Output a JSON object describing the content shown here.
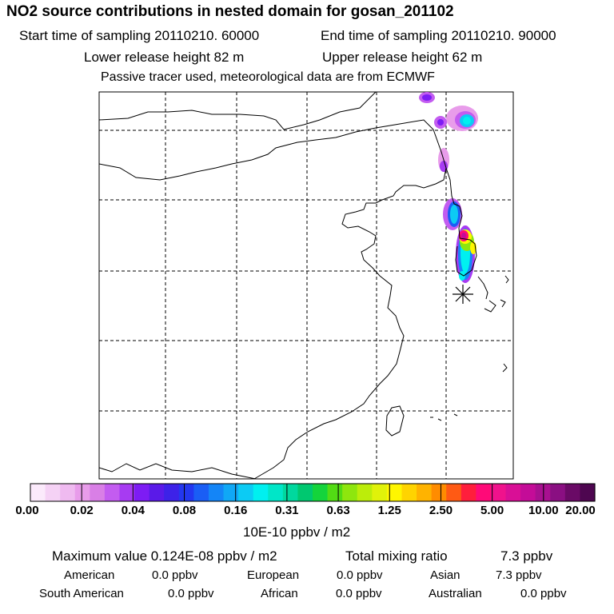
{
  "header": {
    "title": "NO2 source contributions in nested domain for gosan_201102",
    "start_label": "Start time of sampling 20110210. 60000",
    "end_label": "End time of sampling 20110210. 90000",
    "lower_label": "Lower release height   82 m",
    "upper_label": "Upper release height   62 m",
    "note": "Passive tracer used, meteorological data are from ECMWF"
  },
  "colors": {
    "scale": [
      "#fbeafb",
      "#f5d2f5",
      "#efbaf0",
      "#e89cea",
      "#d97fe6",
      "#c35cf0",
      "#a73bf2",
      "#7d1cf4",
      "#5a1ae8",
      "#3d22e8",
      "#2337f0",
      "#1a5ef5",
      "#1485f7",
      "#10a8f6",
      "#0ccbf4",
      "#00f0f0",
      "#00e6c8",
      "#00d89e",
      "#00c870",
      "#14d43c",
      "#52dc14",
      "#8ee60e",
      "#bced0a",
      "#e0f20a",
      "#fff600",
      "#ffd400",
      "#ffb300",
      "#ff8c00",
      "#ff5a14",
      "#ff1e3c",
      "#ff0a78",
      "#f0128c",
      "#d90f96",
      "#c40c98",
      "#a81090",
      "#8a0f82",
      "#6a0a66",
      "#4e0650"
    ]
  },
  "colorbar": {
    "tick_labels": [
      "0.00",
      "0.02",
      "0.04",
      "0.08",
      "0.16",
      "0.31",
      "0.63",
      "1.25",
      "2.50",
      "5.00",
      "10.00",
      "20.00"
    ],
    "unit": "10E-10 ppbv / m2"
  },
  "summary": {
    "max_label": "Maximum value  0.124E-08 ppbv / m2",
    "total_label": "Total mixing ratio",
    "total_value": "7.3 ppbv",
    "regions": [
      {
        "name": "American",
        "value": "0.0 ppbv"
      },
      {
        "name": "European",
        "value": "0.0 ppbv"
      },
      {
        "name": "Asian",
        "value": "7.3 ppbv"
      },
      {
        "name": "South American",
        "value": "0.0 ppbv"
      },
      {
        "name": "African",
        "value": "0.0 ppbv"
      },
      {
        "name": "Australian",
        "value": "0.0 ppbv"
      }
    ]
  }
}
